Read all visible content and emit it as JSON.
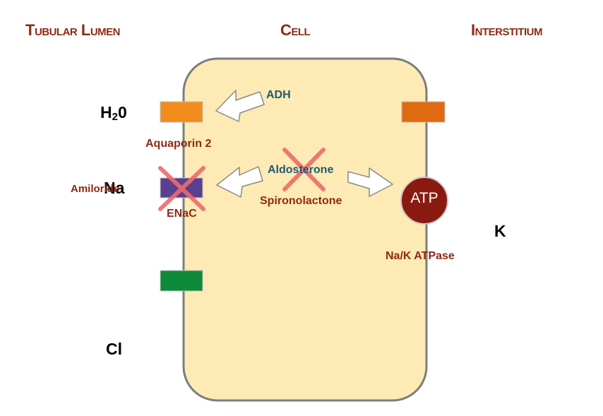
{
  "headers": {
    "tubular_lumen": "Tubular Lumen",
    "cell": "Cell",
    "interstitium": "Interstitium"
  },
  "ions": {
    "water_prefix": "H",
    "water_sub": "2",
    "water_suffix": "0",
    "sodium": "Na",
    "chloride": "Cl",
    "potassium": "K"
  },
  "labels": {
    "adh": "ADH",
    "aquaporin": "Aquaporin 2",
    "amiloride": "Amiloride",
    "enac": "ENaC",
    "aldosterone": "Aldosterone",
    "spironolactone": "Spironolactone",
    "atp": "ATP",
    "pump": "Na/K ATPase"
  },
  "colors": {
    "cell_fill": "#fdeab4",
    "cell_stroke": "#7d7d7d",
    "aquaporin_channel": "#f28c1c",
    "basolateral_channel": "#e06a12",
    "enac_channel": "#5a3f91",
    "chloride_channel": "#0e8a3a",
    "atp_pump": "#8a1a10",
    "blocked_cross": "#ee6b6b",
    "header_text": "#8f2a14",
    "hormone_text": "#1f5a72"
  }
}
